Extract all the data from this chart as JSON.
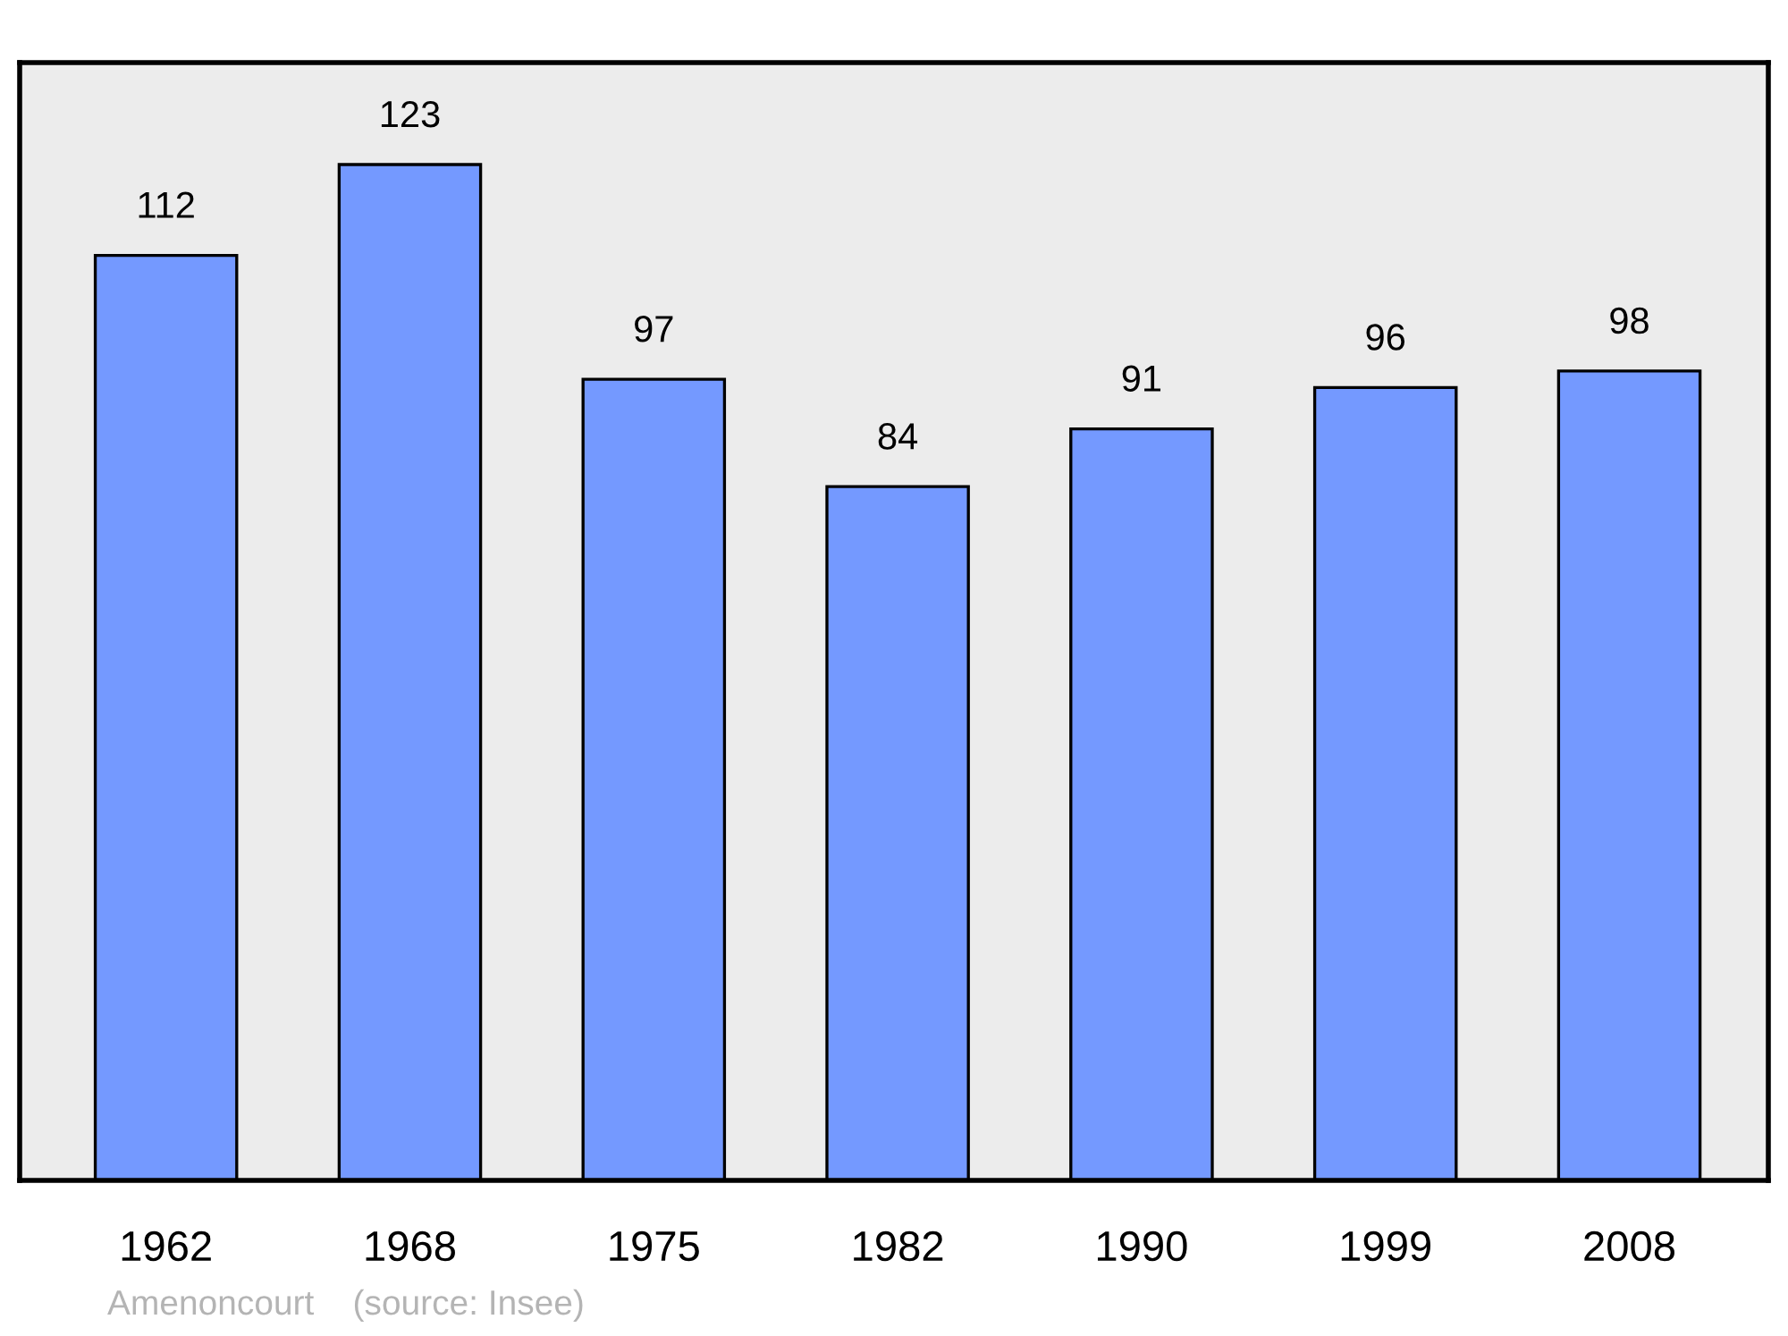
{
  "chart_data": {
    "type": "bar",
    "categories": [
      "1962",
      "1968",
      "1975",
      "1982",
      "1990",
      "1999",
      "2008"
    ],
    "values": [
      112,
      123,
      97,
      84,
      91,
      96,
      98
    ],
    "color": "#7499ff",
    "data_labels": true,
    "grid": false,
    "legend": false,
    "tick_labels": "x",
    "annotations": [
      "Amenoncourt    (source: Insee)"
    ]
  }
}
